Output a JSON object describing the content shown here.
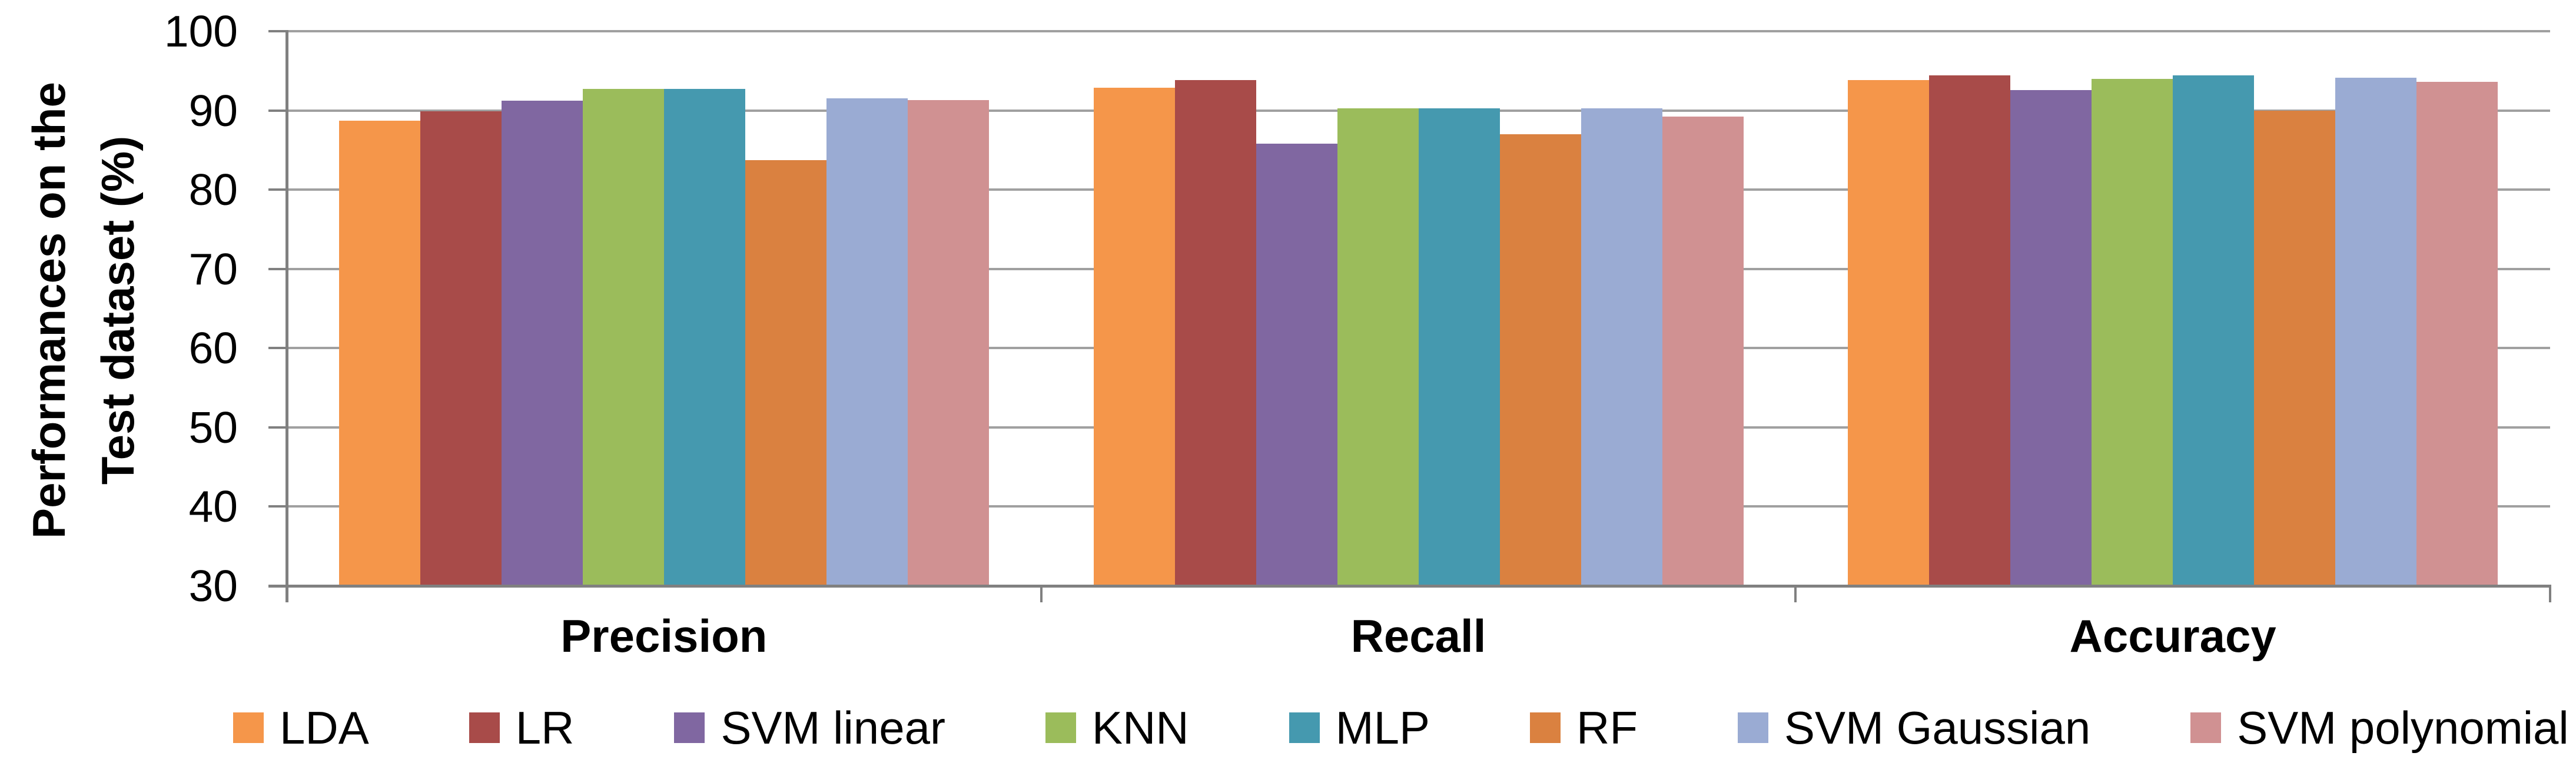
{
  "chart_data": {
    "type": "bar",
    "title": "",
    "ylabel_lines": [
      "Performances on the",
      "Test dataset (%)"
    ],
    "ylabel": "Performances on the Test dataset (%)",
    "xlabel": "",
    "categories": [
      "Precision",
      "Recall",
      "Accuracy"
    ],
    "series": [
      {
        "name": "LDA",
        "color": "#F5964A",
        "values": [
          88.7,
          92.9,
          93.8
        ]
      },
      {
        "name": "LR",
        "color": "#A84B49",
        "values": [
          89.9,
          93.8,
          94.4
        ]
      },
      {
        "name": "SVM linear",
        "color": "#8067A1",
        "values": [
          91.2,
          85.8,
          92.6
        ]
      },
      {
        "name": "KNN",
        "color": "#9BBC5B",
        "values": [
          92.7,
          90.3,
          94.0
        ]
      },
      {
        "name": "MLP",
        "color": "#4599AF",
        "values": [
          92.7,
          90.3,
          94.4
        ]
      },
      {
        "name": "RF",
        "color": "#DA8140",
        "values": [
          83.7,
          87.0,
          90.0
        ]
      },
      {
        "name": "SVM Gaussian",
        "color": "#9AABD3",
        "values": [
          91.5,
          90.3,
          94.1
        ]
      },
      {
        "name": "SVM polynomial",
        "color": "#D09192",
        "values": [
          91.3,
          89.2,
          93.6
        ]
      }
    ],
    "ylim": [
      30,
      100
    ],
    "yticks": [
      100,
      90,
      80,
      70,
      60,
      50,
      40,
      30
    ],
    "grid": true,
    "legend_position": "bottom",
    "colors": {
      "gridline": "#A0A0A0",
      "axis": "#808080",
      "text": "#000000",
      "background": "#FFFFFF"
    }
  }
}
